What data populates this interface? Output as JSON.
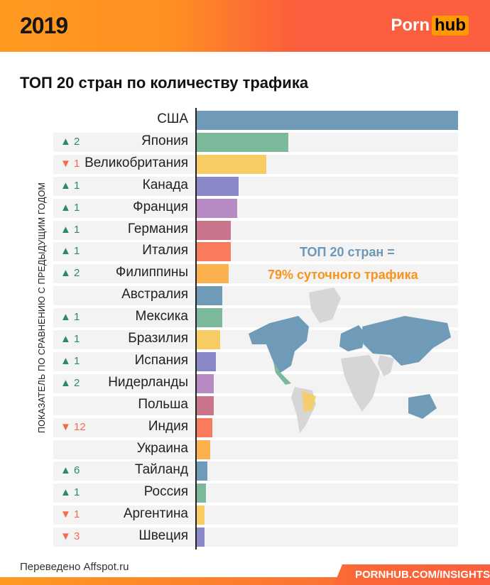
{
  "header": {
    "year": "2019",
    "logo_left": "Porn",
    "logo_right": "hub"
  },
  "colors": {
    "blue": "#6f9bb8",
    "green": "#7cb89a",
    "yellow": "#f7cd63",
    "indigo": "#8a87c6",
    "purple": "#b78ac6",
    "rose": "#c9738c",
    "coral": "#f97a5c",
    "orange": "#fbb24e",
    "up": "#2c8a62",
    "down": "#f36b4b"
  },
  "chart_data": {
    "type": "bar",
    "orientation": "horizontal",
    "title": "ТОП 20 стран по количеству трафика",
    "ylabel": "ПОКАЗАТЕЛЬ ПО СРАВНЕНИЮ С ПРЕДЫДУЩИМ ГОДОМ",
    "value_note": "relative bar length, USA = 100 (no values printed)",
    "categories": [
      "США",
      "Япония",
      "Великобритания",
      "Канада",
      "Франция",
      "Германия",
      "Италия",
      "Филиппины",
      "Австралия",
      "Мексика",
      "Бразилия",
      "Испания",
      "Нидерланды",
      "Польша",
      "Индия",
      "Украина",
      "Тайланд",
      "Россия",
      "Аргентина",
      "Швеция"
    ],
    "values": [
      100,
      35.2,
      26.8,
      16.3,
      15.7,
      13.3,
      13.3,
      12.5,
      10,
      10,
      9.2,
      7.6,
      6.8,
      6.8,
      6.2,
      5.4,
      4.3,
      3.8,
      3.3,
      3.3
    ],
    "rank_change": [
      "",
      "▲ 2",
      "▼ 1",
      "▲ 1",
      "▲ 1",
      "▲ 1",
      "▲ 1",
      "▲ 2",
      "",
      "▲ 1",
      "▲ 1",
      "▲ 1",
      "▲ 2",
      "",
      "▼ 12",
      "",
      "▲ 6",
      "▲ 1",
      "▼ 1",
      "▼ 3"
    ],
    "bar_colors": [
      "blue",
      "green",
      "yellow",
      "indigo",
      "purple",
      "rose",
      "coral",
      "orange",
      "blue",
      "green",
      "yellow",
      "indigo",
      "purple",
      "rose",
      "coral",
      "orange",
      "blue",
      "green",
      "yellow",
      "indigo"
    ],
    "annotation_line1": "ТОП 20 стран =",
    "annotation_line2": "79% суточного трафика"
  },
  "footer": {
    "credit": "Переведено Affspot.ru",
    "link": "PORNHUB.COM/INSIGHTS"
  }
}
